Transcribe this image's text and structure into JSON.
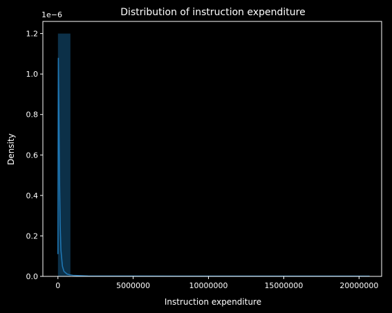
{
  "chart_data": {
    "type": "histogram",
    "title": "Distribution of instruction expenditure",
    "xlabel": "Instruction expenditure",
    "ylabel": "Density",
    "y_offset_label": "1e−6",
    "xlim": [
      -1000000,
      21500000
    ],
    "ylim": [
      0,
      1.26
    ],
    "x_ticks": [
      0,
      5000000,
      10000000,
      15000000,
      20000000
    ],
    "x_tick_labels": [
      "0",
      "5000000",
      "10000000",
      "15000000",
      "20000000"
    ],
    "y_ticks": [
      0.0,
      0.2,
      0.4,
      0.6,
      0.8,
      1.0,
      1.2
    ],
    "y_tick_labels": [
      "0.0",
      "0.2",
      "0.4",
      "0.6",
      "0.8",
      "1.0",
      "1.2"
    ],
    "bins": [
      {
        "x0": 0,
        "x1": 830000,
        "density": 1.2
      }
    ],
    "kde": {
      "x": [
        0,
        30000,
        60000,
        100000,
        150000,
        200000,
        300000,
        400000,
        600000,
        800000,
        1000000,
        2000000,
        5000000,
        10000000,
        15000000,
        20700000
      ],
      "y": [
        0.11,
        1.08,
        0.85,
        0.5,
        0.26,
        0.13,
        0.05,
        0.025,
        0.012,
        0.007,
        0.005,
        0.002,
        0.0012,
        0.001,
        0.001,
        0.001
      ]
    },
    "colors": {
      "background": "#000000",
      "bar": "#1f77b4",
      "line": "#1f77b4",
      "text": "#ffffff"
    },
    "grid": false
  }
}
